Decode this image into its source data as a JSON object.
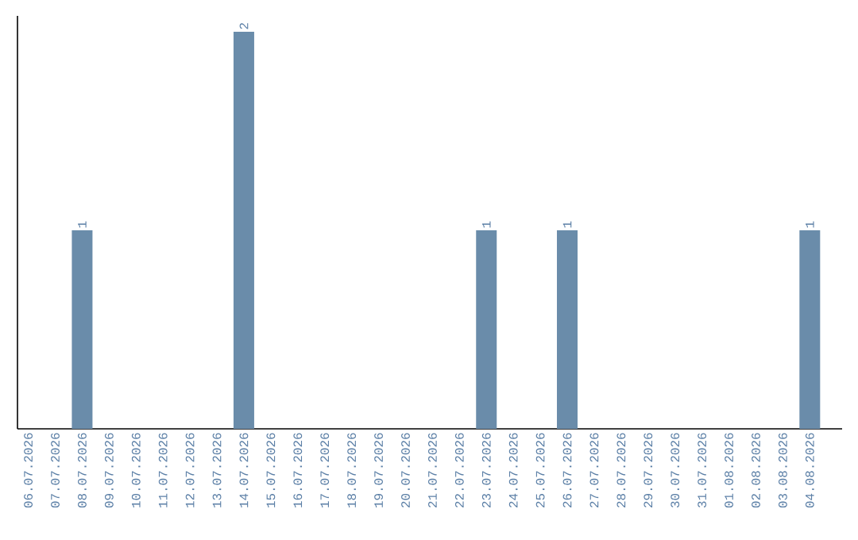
{
  "chart_data": {
    "type": "bar",
    "categories": [
      "06.07.2026",
      "07.07.2026",
      "08.07.2026",
      "09.07.2026",
      "10.07.2026",
      "11.07.2026",
      "12.07.2026",
      "13.07.2026",
      "14.07.2026",
      "15.07.2026",
      "16.07.2026",
      "17.07.2026",
      "18.07.2026",
      "19.07.2026",
      "20.07.2026",
      "21.07.2026",
      "22.07.2026",
      "23.07.2026",
      "24.07.2026",
      "25.07.2026",
      "26.07.2026",
      "27.07.2026",
      "28.07.2026",
      "29.07.2026",
      "30.07.2026",
      "31.07.2026",
      "01.08.2026",
      "02.08.2026",
      "03.08.2026",
      "04.08.2026"
    ],
    "values": [
      0,
      0,
      1,
      0,
      0,
      0,
      0,
      0,
      2,
      0,
      0,
      0,
      0,
      0,
      0,
      0,
      0,
      1,
      0,
      0,
      1,
      0,
      0,
      0,
      0,
      0,
      0,
      0,
      0,
      1
    ],
    "value_labels": [
      null,
      null,
      "1",
      null,
      null,
      null,
      null,
      null,
      "2",
      null,
      null,
      null,
      null,
      null,
      null,
      null,
      null,
      "1",
      null,
      null,
      "1",
      null,
      null,
      null,
      null,
      null,
      null,
      null,
      null,
      "1"
    ],
    "color": "#6a8caa",
    "ylim": [
      0,
      2.08
    ],
    "tick_labels": "x"
  }
}
